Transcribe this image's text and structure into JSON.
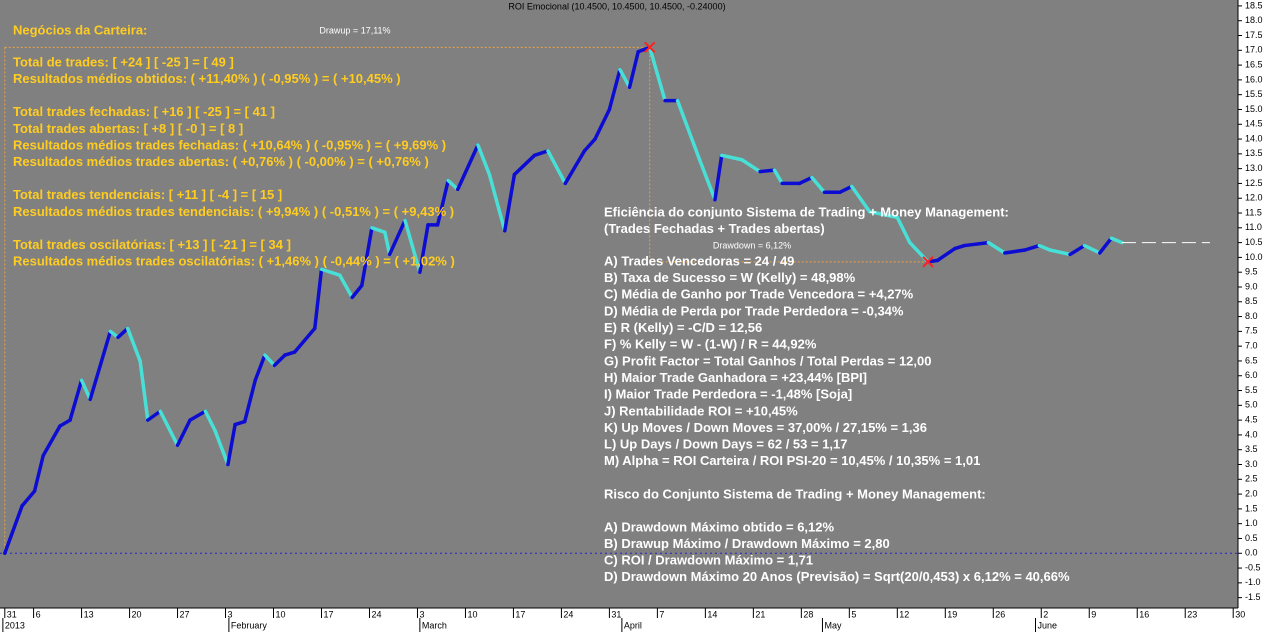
{
  "chart_data": {
    "type": "line",
    "title": "ROI Emocional (10.4500, 10.4500, 10.4500, -0.24000)",
    "drawup_label": "Drawup = 17,11%",
    "drawdown_label": "Drawdown = 6,12%",
    "up_color": "#0c0cd2",
    "down_color": "#48e0d6",
    "xlim": [
      0,
      129
    ],
    "ylim": [
      -1.85,
      18.7
    ],
    "x": [
      0.5,
      2.3,
      3.6,
      4.5,
      6.25,
      7.3,
      8.5,
      9.4,
      11.5,
      12.3,
      13.3,
      14.6,
      15.4,
      16.7,
      18.5,
      19.8,
      21.4,
      22.4,
      23.75,
      24.5,
      25.5,
      26.6,
      27.6,
      28.6,
      29.7,
      30.7,
      32.8,
      33.5,
      35.4,
      36.7,
      37.7,
      38.75,
      40.1,
      40.6,
      42.2,
      43.75,
      44.6,
      45.6,
      46.7,
      47.7,
      49.8,
      51,
      52.6,
      53.6,
      55.7,
      57.1,
      58.9,
      60.9,
      62,
      63.5,
      64.6,
      65.6,
      66.5,
      67.7,
      69.3,
      70.6,
      72.9,
      74.5,
      75.2,
      77.3,
      79.2,
      80.7,
      81.5,
      83.3,
      84.6,
      85.9,
      87.5,
      88.75,
      90.6,
      93.5,
      94.8,
      96.7,
      97.7,
      99.5,
      100.5,
      103,
      104.7,
      106.8,
      108.3,
      109.4,
      111.5,
      113,
      114.6,
      115.8,
      116.9
    ],
    "series": [
      {
        "name": "ROI Emocional",
        "values": [
          0,
          1.6,
          2.1,
          3.3,
          4.3,
          4.5,
          5.85,
          5.2,
          7.5,
          7.3,
          7.6,
          6.5,
          4.5,
          4.8,
          3.65,
          4.5,
          4.8,
          4.15,
          3.0,
          4.35,
          4.45,
          5.85,
          6.7,
          6.35,
          6.7,
          6.8,
          7.6,
          9.6,
          9.4,
          8.65,
          9.05,
          11.0,
          10.85,
          10.1,
          11.25,
          9.5,
          11.1,
          11.1,
          12.6,
          12.3,
          13.8,
          12.8,
          10.9,
          12.8,
          13.45,
          13.6,
          12.5,
          13.6,
          14.0,
          15.0,
          16.35,
          15.75,
          16.95,
          17.1,
          15.3,
          15.3,
          13.3,
          11.95,
          13.45,
          13.3,
          12.9,
          12.95,
          12.5,
          12.5,
          12.7,
          12.2,
          12.2,
          12.4,
          11.55,
          11.35,
          10.5,
          9.85,
          9.9,
          10.3,
          10.4,
          10.5,
          10.15,
          10.25,
          10.4,
          10.25,
          10.1,
          10.4,
          10.15,
          10.65,
          10.5
        ]
      }
    ],
    "yticks": [
      18.5,
      {
        "value": 18,
        "label": "18.0"
      },
      17.5,
      {
        "value": 17,
        "label": "17.0"
      },
      16.5,
      {
        "value": 16,
        "label": "16.0"
      },
      15.5,
      {
        "value": 15,
        "label": "15.0"
      },
      14.5,
      {
        "value": 14,
        "label": "14.0"
      },
      13.5,
      {
        "value": 13,
        "label": "13.0"
      },
      12.5,
      {
        "value": 12,
        "label": "12.0"
      },
      11.5,
      {
        "value": 11,
        "label": "11.0"
      },
      10.5,
      {
        "value": 10,
        "label": "10.0"
      },
      9.5,
      {
        "value": 9,
        "label": "9.0"
      },
      8.5,
      {
        "value": 8,
        "label": "8.0"
      },
      7.5,
      {
        "value": 7,
        "label": "7.0"
      },
      6.5,
      {
        "value": 6,
        "label": "6.0"
      },
      5.5,
      {
        "value": 5,
        "label": "5.0"
      },
      4.5,
      {
        "value": 4,
        "label": "4.0"
      },
      3.5,
      {
        "value": 3,
        "label": "3.0"
      },
      2.5,
      {
        "value": 2,
        "label": "2.0"
      },
      1.5,
      {
        "value": 1,
        "label": "1.0"
      },
      0.5,
      {
        "value": 0,
        "label": "0.0"
      },
      -0.5,
      {
        "value": -1,
        "label": "-1.0"
      },
      -1.5
    ],
    "xticks": [
      {
        "value": 0.5,
        "label": "31"
      },
      {
        "value": 3.5,
        "label": "6"
      },
      {
        "value": 8.5,
        "label": "13"
      },
      {
        "value": 13.5,
        "label": "20"
      },
      {
        "value": 18.5,
        "label": "27"
      },
      {
        "value": 23.5,
        "label": "3"
      },
      {
        "value": 28.5,
        "label": "10"
      },
      {
        "value": 33.5,
        "label": "17"
      },
      {
        "value": 38.5,
        "label": "24"
      },
      {
        "value": 43.5,
        "label": "3"
      },
      {
        "value": 48.5,
        "label": "10"
      },
      {
        "value": 53.5,
        "label": "17"
      },
      {
        "value": 58.5,
        "label": "24"
      },
      {
        "value": 63.5,
        "label": "31"
      },
      {
        "value": 68.5,
        "label": "7"
      },
      {
        "value": 73.5,
        "label": "14"
      },
      {
        "value": 78.5,
        "label": "21"
      },
      {
        "value": 83.5,
        "label": "28"
      },
      {
        "value": 88.5,
        "label": "5"
      },
      {
        "value": 93.5,
        "label": "12"
      },
      {
        "value": 98.5,
        "label": "19"
      },
      {
        "value": 103.5,
        "label": "26"
      },
      {
        "value": 108.5,
        "label": "2"
      },
      {
        "value": 113.5,
        "label": "9"
      },
      {
        "value": 118.5,
        "label": "16"
      },
      {
        "value": 123.5,
        "label": "23"
      },
      {
        "value": 128.5,
        "label": "30"
      }
    ],
    "month_labels": [
      {
        "value": 0.3,
        "label": "2013"
      },
      {
        "value": 23.85,
        "label": "February"
      },
      {
        "value": 43.75,
        "label": "March"
      },
      {
        "value": 64.8,
        "label": "April"
      },
      {
        "value": 85.7,
        "label": "May"
      },
      {
        "value": 107.9,
        "label": "June"
      }
    ]
  },
  "left_panel": {
    "heading": "Negócios da Carteira:",
    "groups": [
      [
        "Total de trades: [ +24 ] [ -25 ] = [ 49 ]",
        "Resultados médios obtidos: ( +11,40% ) ( -0,95% ) = ( +10,45% )"
      ],
      [
        "Total trades fechadas: [ +16 ] [ -25 ] = [ 41 ]",
        "Total trades abertas: [ +8 ] [ -0 ] = [ 8 ]",
        "Resultados médios trades fechadas: ( +10,64% ) ( -0,95% ) = ( +9,69% )",
        "Resultados médios trades abertas: ( +0,76% ) ( -0,00% ) = ( +0,76% )"
      ],
      [
        "Total trades tendenciais: [ +11 ] [ -4 ] = [ 15 ]",
        "Resultados médios trades tendenciais: ( +9,94% ) ( -0,51% ) = ( +9,43% )"
      ],
      [
        "Total trades oscilatórias: [ +13 ] [ -21 ] = [ 34 ]",
        "Resultados médios trades oscilatórias: ( +1,46% ) ( -0,44% ) = ( +1,02% )"
      ]
    ]
  },
  "right_panel": {
    "title_lines": [
      "Eficiência do conjunto Sistema de Trading + Money Management:",
      "(Trades Fechadas + Trades abertas)"
    ],
    "items": [
      "A) Trades Vencedoras = 24 / 49",
      "B) Taxa de Sucesso = W (Kelly) = 48,98%",
      "C) Média de Ganho por Trade Vencedora = +4,27%",
      "D) Média de Perda por Trade Perdedora = -0,34%",
      "E) R (Kelly) = -C/D = 12,56",
      "F) % Kelly = W - (1-W) / R = 44,92%",
      "G) Profit Factor = Total Ganhos / Total Perdas = 12,00",
      "H) Maior Trade Ganhadora = +23,44%   [BPI]",
      "I) Maior Trade Perdedora = -1,48%   [Soja]",
      "J) Rentabilidade ROI = +10,45%",
      "K) Up Moves / Down Moves = 37,00% / 27,15% = 1,36",
      "L) Up Days / Down Days = 62 / 53 = 1,17",
      "M) Alpha = ROI Carteira / ROI PSI-20 = 10,45% / 10,35% = 1,01"
    ],
    "risk_title": "Risco do Conjunto Sistema de Trading + Money Management:",
    "risk_items": [
      "A) Drawdown Máximo obtido = 6,12%",
      "B) Drawup Máximo / Drawdown Máximo = 2,80",
      "C) ROI / Drawdown Máximo = 1,71",
      "D) Drawdown Máximo 20 Anos (Previsão) = Sqrt(20/0,453) x 6,12% = 40,66%"
    ]
  }
}
